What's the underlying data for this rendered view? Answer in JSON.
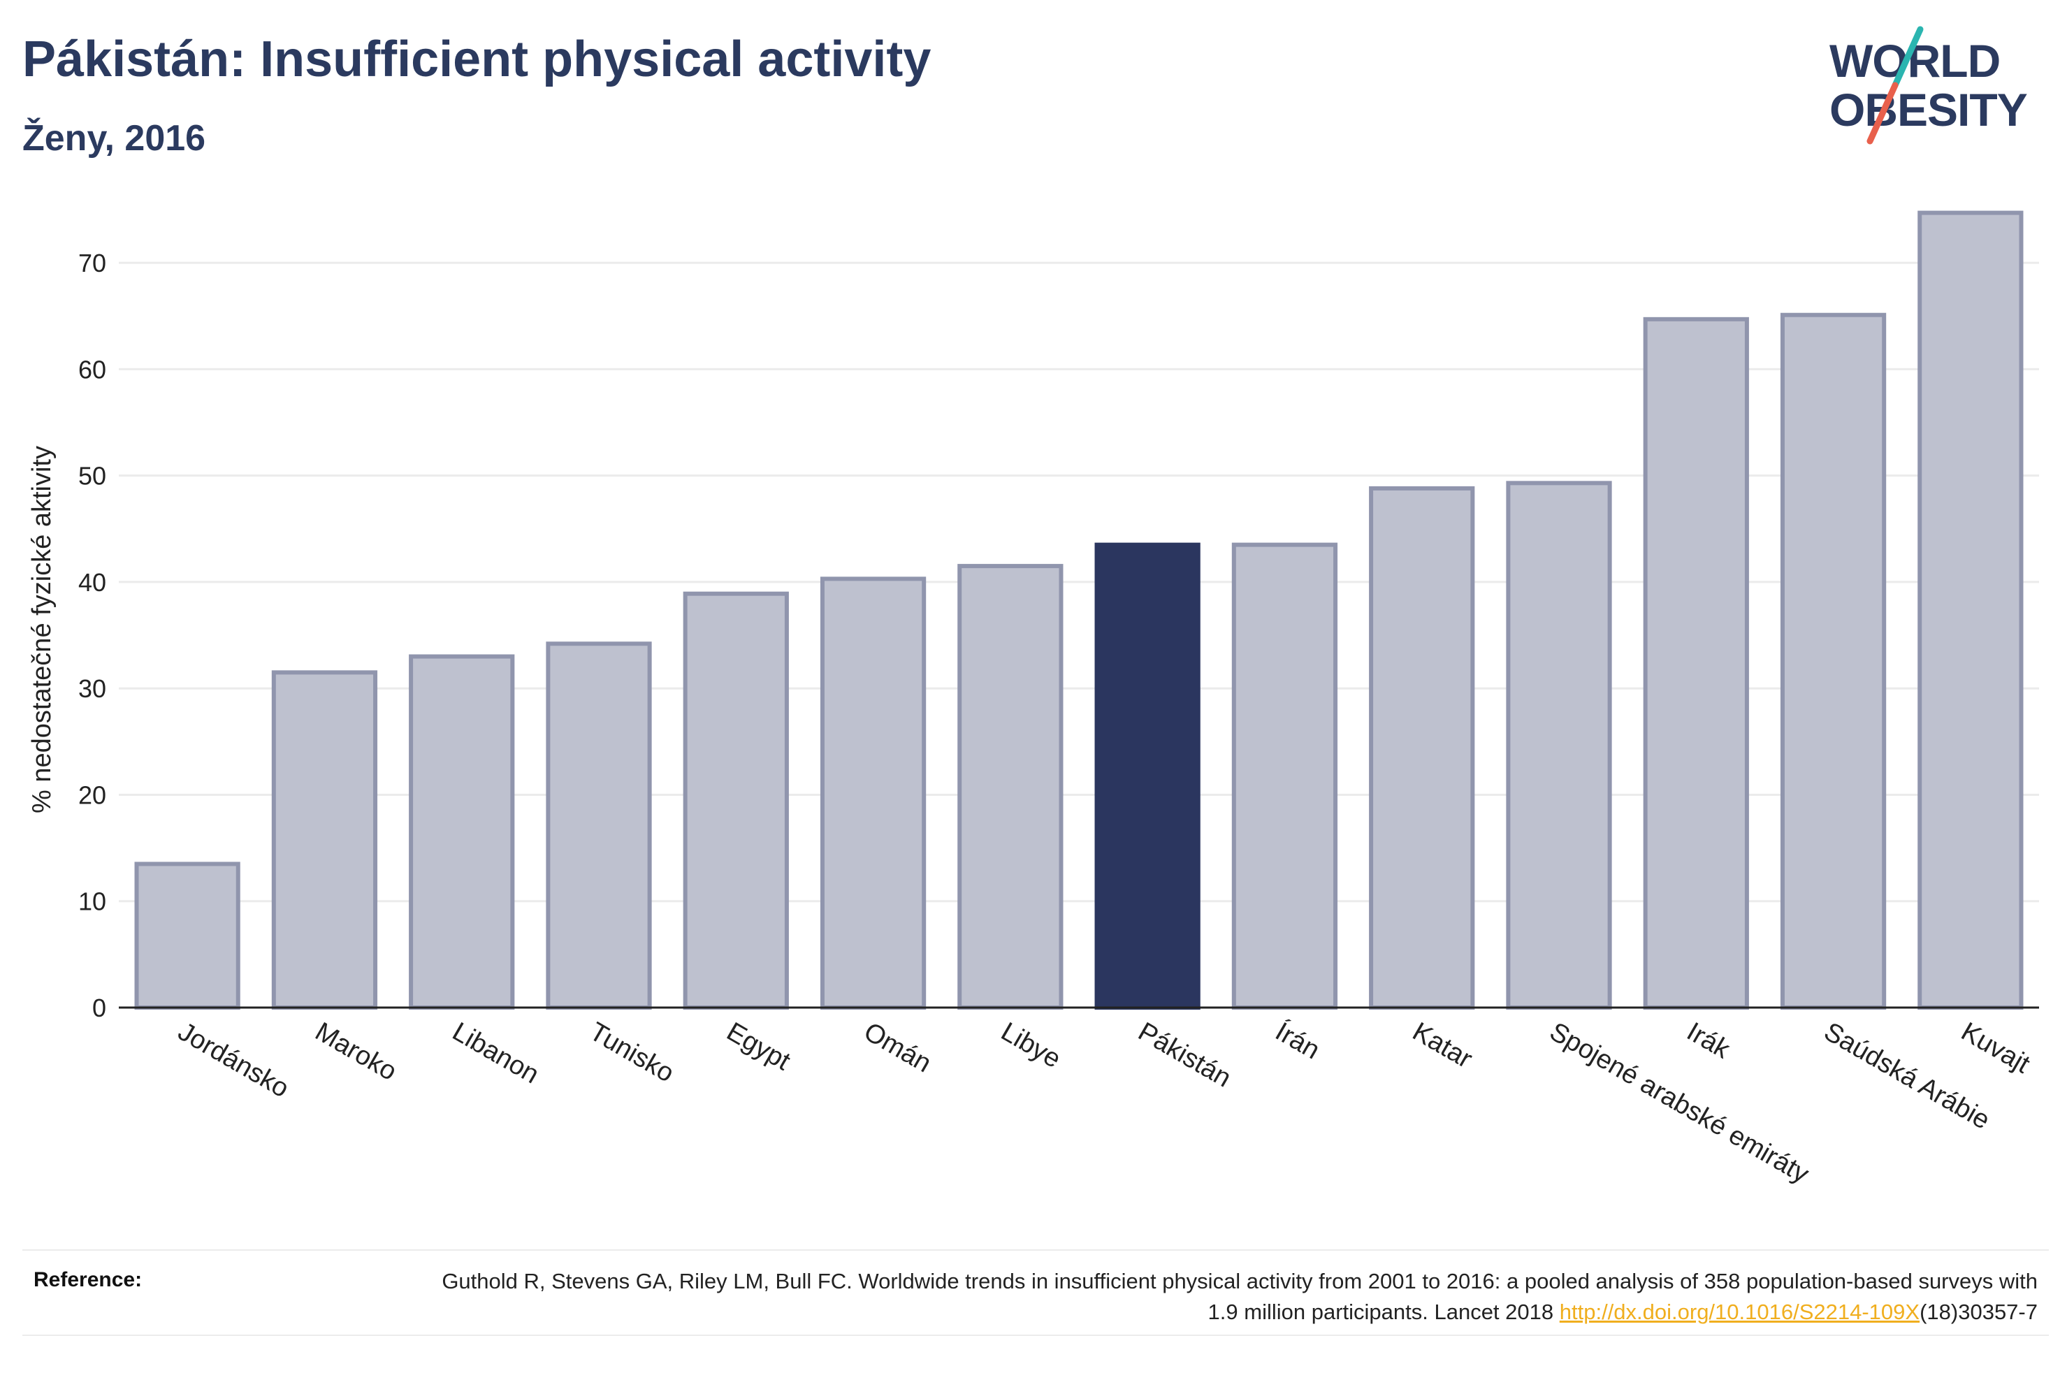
{
  "header": {
    "title": "Pákistán: Insufficient physical activity",
    "subtitle": "Ženy, 2016"
  },
  "logo": {
    "line1": "WORLD",
    "line2": "OBESITY",
    "accent_teal": "#2bb5b0",
    "accent_red": "#e8604c"
  },
  "chart_data": {
    "type": "bar",
    "title": "Pákistán: Insufficient physical activity",
    "subtitle": "Ženy, 2016",
    "ylabel": "% nedostatečné fyzické aktivity",
    "xlabel": "",
    "ylim": [
      0,
      75
    ],
    "yticks": [
      0,
      10,
      20,
      30,
      40,
      50,
      60,
      70
    ],
    "grid": true,
    "categories": [
      "Jordánsko",
      "Maroko",
      "Libanon",
      "Tunisko",
      "Egypt",
      "Omán",
      "Libye",
      "Pákistán",
      "Írán",
      "Katar",
      "Spojené arabské emiráty",
      "Irák",
      "Saúdská Arábie",
      "Kuvajt"
    ],
    "values": [
      13.5,
      31.5,
      33.0,
      34.2,
      38.9,
      40.3,
      41.5,
      43.5,
      43.5,
      48.8,
      49.3,
      64.7,
      65.1,
      74.7
    ],
    "highlight": "Pákistán",
    "colors": {
      "bar": "#bec1cf",
      "bar_border": "#9095ad",
      "highlight": "#2b365f",
      "grid": "#ebebeb",
      "axis": "#222222"
    }
  },
  "reference": {
    "label": "Reference:",
    "text_before": "Guthold R, Stevens GA, Riley LM, Bull FC. Worldwide trends in insufficient physical activity from 2001 to 2016: a pooled analysis of 358 population-based surveys with 1.9 million participants. Lancet 2018 ",
    "link": "http://dx.doi.org/10.1016/S2214-109X",
    "text_after": "(18)30357-7"
  }
}
